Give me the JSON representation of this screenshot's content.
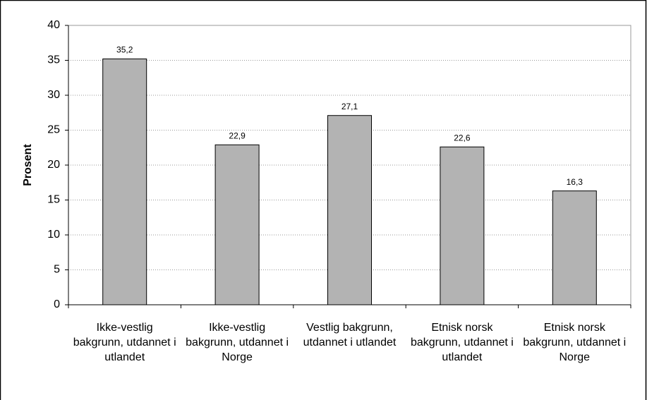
{
  "chart_data": {
    "type": "bar",
    "y_label": "Prosent",
    "categories": [
      "Ikke-vestlig bakgrunn, utdannet i utlandet",
      "Ikke-vestlig bakgrunn, utdannet i Norge",
      "Vestlig bakgrunn, utdannet i utlandet",
      "Etnisk norsk bakgrunn, utdannet i utlandet",
      "Etnisk norsk bakgrunn, utdannet i Norge"
    ],
    "values": [
      35.2,
      22.9,
      27.1,
      22.6,
      16.3
    ],
    "value_labels": [
      "35,2",
      "22,9",
      "27,1",
      "22,6",
      "16,3"
    ],
    "color": "#b3b3b3",
    "ylim": [
      0,
      40
    ],
    "yticks": [
      0,
      5,
      10,
      15,
      20,
      25,
      30,
      35,
      40
    ],
    "grid": true
  }
}
